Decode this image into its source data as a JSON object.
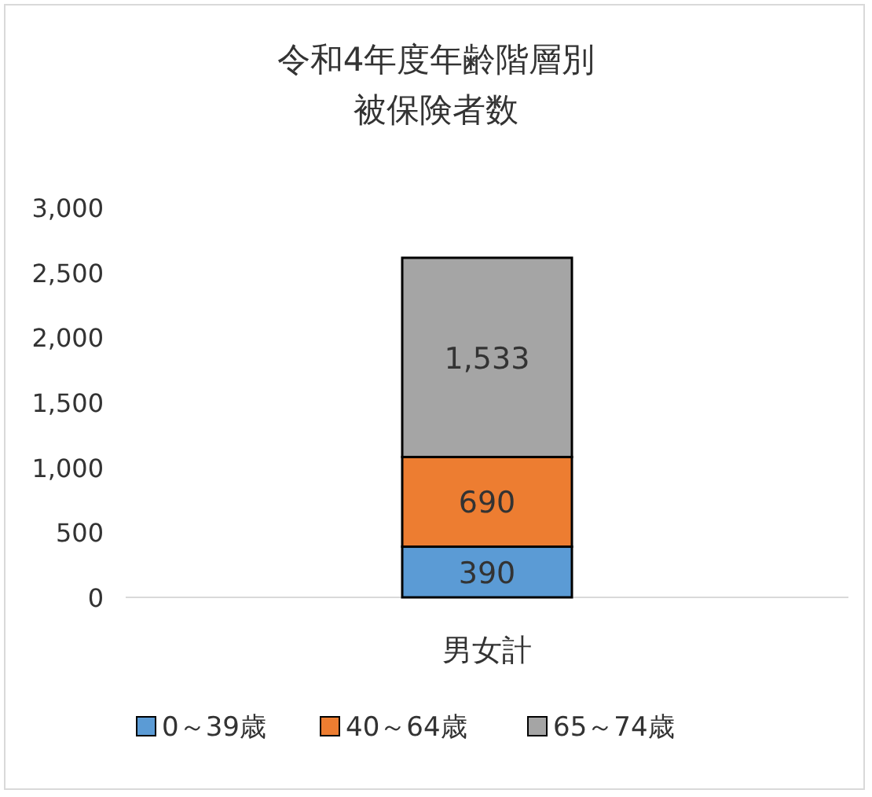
{
  "chart_data": {
    "type": "bar",
    "stacked": true,
    "title": "令和4年度年齢階層別被保険者数",
    "categories": [
      "男女計"
    ],
    "series": [
      {
        "name": "0～39歳",
        "color": "#5b9bd5",
        "values": [
          390
        ],
        "value_labels": [
          "390"
        ]
      },
      {
        "name": "40～64歳",
        "color": "#ed7d31",
        "values": [
          690
        ],
        "value_labels": [
          "690"
        ]
      },
      {
        "name": "65～74歳",
        "color": "#a5a5a5",
        "values": [
          1533
        ],
        "value_labels": [
          "1,533"
        ]
      }
    ],
    "ylim": [
      0,
      3000
    ],
    "yticks": [
      0,
      500,
      {
        "value": 1000,
        "label": "1,000"
      },
      {
        "value": 1500,
        "label": "1,500"
      },
      {
        "value": 2000,
        "label": "2,000"
      },
      {
        "value": 2500,
        "label": "2,500"
      },
      {
        "value": 3000,
        "label": "3,000"
      }
    ],
    "legend": "bottom"
  }
}
